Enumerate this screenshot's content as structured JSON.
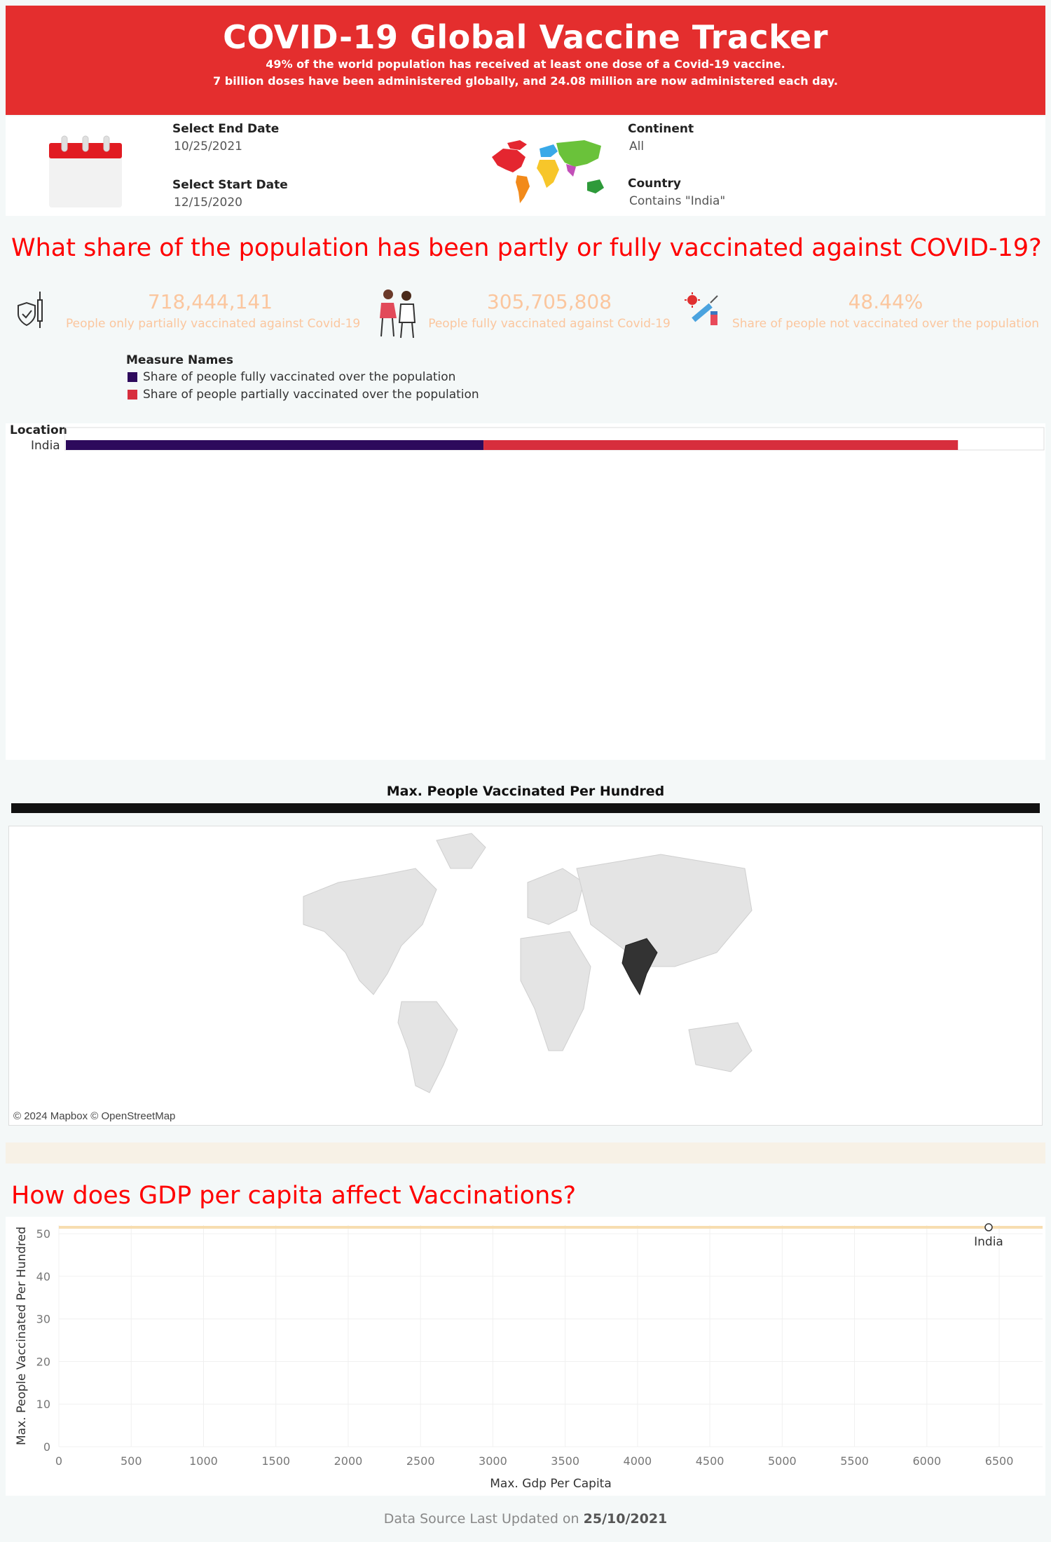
{
  "header": {
    "title": "COVID-19 Global Vaccine Tracker",
    "line1": "49% of the world population has received at least one dose of a Covid-19 vaccine.",
    "line2": "7 billion doses have been administered globally, and 24.08 million are now administered each day."
  },
  "filters": {
    "end_date_label": "Select End Date",
    "end_date_value": "10/25/2021",
    "start_date_label": "Select Start Date",
    "start_date_value": "12/15/2020",
    "continent_label": "Continent",
    "continent_value": "All",
    "country_label": "Country",
    "country_value": "Contains \"India\""
  },
  "question1": "What share of the population has been partly or fully vaccinated  against COVID-19?",
  "kpis": [
    {
      "value": "718,444,141",
      "label": "People only partially vaccinated against Covid-19",
      "icon": "vaccine-shield-icon"
    },
    {
      "value": "305,705,808",
      "label": "People fully vaccinated against Covid-19",
      "icon": "vaccination-people-icon"
    },
    {
      "value": "48.44%",
      "label": "Share of people not vaccinated over the population",
      "icon": "virus-syringe-icon"
    }
  ],
  "legend": {
    "title": "Measure Names",
    "items": [
      {
        "label": "Share of people fully vaccinated over the population",
        "color": "#2d0a5c"
      },
      {
        "label": "Share of people partially vaccinated over the population",
        "color": "#d72e3d"
      }
    ]
  },
  "bar_chart": {
    "column_header": "Location",
    "row_label": "India",
    "fully_share": 0.427,
    "partial_share": 0.485
  },
  "map": {
    "title": "Max. People Vaccinated Per Hundred",
    "credit": "© 2024 Mapbox © OpenStreetMap",
    "highlight_country": "India",
    "highlight_color": "#333333"
  },
  "question2": "How does GDP per capita affect Vaccinations?",
  "chart_data": {
    "type": "scatter",
    "title": "",
    "xlabel": "Max. Gdp Per Capita",
    "ylabel": "Max. People Vaccinated Per Hundred",
    "xlim": [
      0,
      6800
    ],
    "ylim": [
      0,
      52
    ],
    "xticks": [
      0,
      500,
      1000,
      1500,
      2000,
      2500,
      3000,
      3500,
      4000,
      4500,
      5000,
      5500,
      6000,
      6500
    ],
    "yticks": [
      0,
      10,
      20,
      30,
      40,
      50
    ],
    "reference_line_y": 51.5,
    "points": [
      {
        "label": "India",
        "x": 6427,
        "y": 51.5
      }
    ]
  },
  "footer": {
    "prefix": "Data Source Last Updated on ",
    "date": "25/10/2021"
  }
}
